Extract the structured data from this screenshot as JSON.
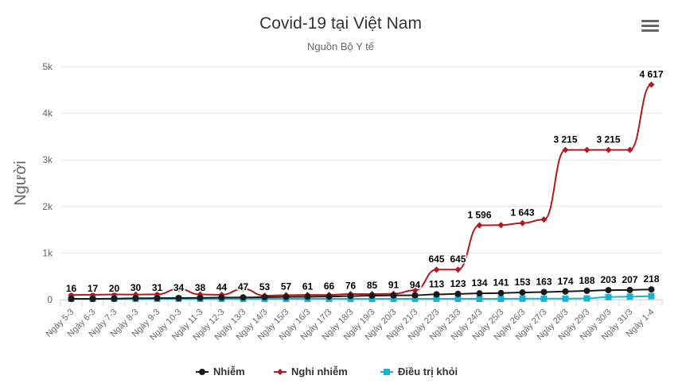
{
  "chart_data": {
    "type": "line",
    "title": "Covid-19 tại Việt Nam",
    "subtitle": "Nguồn Bộ Y tế",
    "ylabel": "Người",
    "xlabel": "",
    "ylim": [
      0,
      5000
    ],
    "yticks": [
      0,
      1000,
      2000,
      3000,
      4000,
      5000
    ],
    "ytick_labels": [
      "0",
      "1k",
      "2k",
      "3k",
      "4k",
      "5k"
    ],
    "grid": true,
    "legend_position": "bottom-center",
    "categories": [
      "Ngày 5-3",
      "Ngày 6-3",
      "Ngày 7-3",
      "Ngày 8-3",
      "Ngày 9-3",
      "Ngày 10-3",
      "Ngày 11-3",
      "Ngày 12-3",
      "Ngày 13/3",
      "Ngày 14/3",
      "Ngày 15/3",
      "Ngày 16/3",
      "Ngày 17/3",
      "Ngày 18/3",
      "Ngày 19/3",
      "Ngày 20/3",
      "Ngày 21/3",
      "Ngày 22/3",
      "Ngày 23/3",
      "Ngày 24/3",
      "Ngày 25/3",
      "Ngày 26/3",
      "Ngày 27/3",
      "Ngày 28/3",
      "Ngày 29/3",
      "Ngày 30/3",
      "Ngày 31/3",
      "Ngày 1-4"
    ],
    "series": [
      {
        "name": "Nhiễm",
        "color": "#1a1a1a",
        "marker": "circle",
        "values": [
          16,
          17,
          20,
          30,
          31,
          34,
          38,
          44,
          47,
          53,
          57,
          61,
          66,
          76,
          85,
          91,
          94,
          113,
          123,
          134,
          141,
          153,
          163,
          174,
          188,
          203,
          207,
          218
        ],
        "data_labels": [
          "16",
          "17",
          "20",
          "30",
          "31",
          "34",
          "38",
          "44",
          "47",
          "53",
          "57",
          "61",
          "66",
          "76",
          "85",
          "91",
          "94",
          "113",
          "123",
          "134",
          "141",
          "153",
          "163",
          "174",
          "188",
          "203",
          "207",
          "218"
        ]
      },
      {
        "name": "Nghi nhiễm",
        "color": "#b5191f",
        "marker": "diamond",
        "values": [
          100,
          105,
          110,
          108,
          112,
          230,
          110,
          105,
          230,
          85,
          95,
          100,
          100,
          120,
          120,
          125,
          200,
          645,
          645,
          1596,
          1600,
          1643,
          1720,
          3215,
          3215,
          3215,
          3215,
          4617
        ],
        "data_labels": [
          "",
          "",
          "",
          "",
          "",
          "",
          "",
          "",
          "",
          "",
          "",
          "",
          "",
          "",
          "",
          "",
          "",
          "645",
          "645",
          "1 596",
          "",
          "1 643",
          "",
          "3 215",
          "",
          "3 215",
          "",
          "4 617"
        ]
      },
      {
        "name": "Điều trị khỏi",
        "color": "#19b3d3",
        "marker": "square",
        "values": [
          16,
          16,
          16,
          16,
          16,
          16,
          16,
          16,
          16,
          16,
          16,
          16,
          16,
          16,
          16,
          16,
          16,
          17,
          17,
          17,
          17,
          20,
          21,
          21,
          25,
          55,
          63,
          75
        ],
        "data_labels": []
      }
    ]
  },
  "legend": {
    "items": [
      "Nhiễm",
      "Nghi nhiễm",
      "Điều trị khỏi"
    ]
  },
  "menu": {
    "icon": "hamburger-menu-icon"
  }
}
